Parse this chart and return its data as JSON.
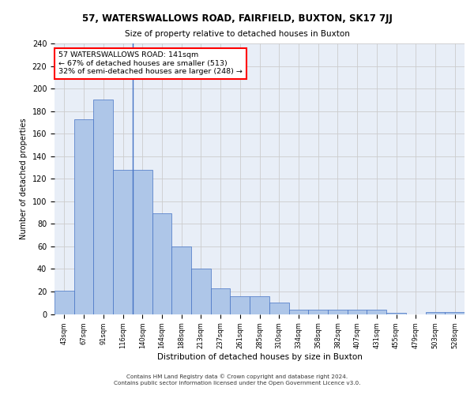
{
  "title_top": "57, WATERSWALLOWS ROAD, FAIRFIELD, BUXTON, SK17 7JJ",
  "title_sub": "Size of property relative to detached houses in Buxton",
  "xlabel": "Distribution of detached houses by size in Buxton",
  "ylabel": "Number of detached properties",
  "categories": [
    "43sqm",
    "67sqm",
    "91sqm",
    "116sqm",
    "140sqm",
    "164sqm",
    "188sqm",
    "213sqm",
    "237sqm",
    "261sqm",
    "285sqm",
    "310sqm",
    "334sqm",
    "358sqm",
    "382sqm",
    "407sqm",
    "431sqm",
    "455sqm",
    "479sqm",
    "503sqm",
    "528sqm"
  ],
  "values": [
    21,
    173,
    190,
    128,
    128,
    89,
    60,
    40,
    23,
    16,
    16,
    10,
    4,
    4,
    4,
    4,
    4,
    1,
    0,
    2,
    2
  ],
  "bar_color": "#aec6e8",
  "bar_edge_color": "#4472c4",
  "vline_index": 4,
  "vline_color": "#4472c4",
  "annotation_text": "57 WATERSWALLOWS ROAD: 141sqm\n← 67% of detached houses are smaller (513)\n32% of semi-detached houses are larger (248) →",
  "annotation_box_color": "white",
  "annotation_box_edge_color": "red",
  "grid_color": "#cccccc",
  "bg_color": "#e8eef7",
  "footer_line1": "Contains HM Land Registry data © Crown copyright and database right 2024.",
  "footer_line2": "Contains public sector information licensed under the Open Government Licence v3.0.",
  "ylim": [
    0,
    240
  ],
  "yticks": [
    0,
    20,
    40,
    60,
    80,
    100,
    120,
    140,
    160,
    180,
    200,
    220,
    240
  ]
}
